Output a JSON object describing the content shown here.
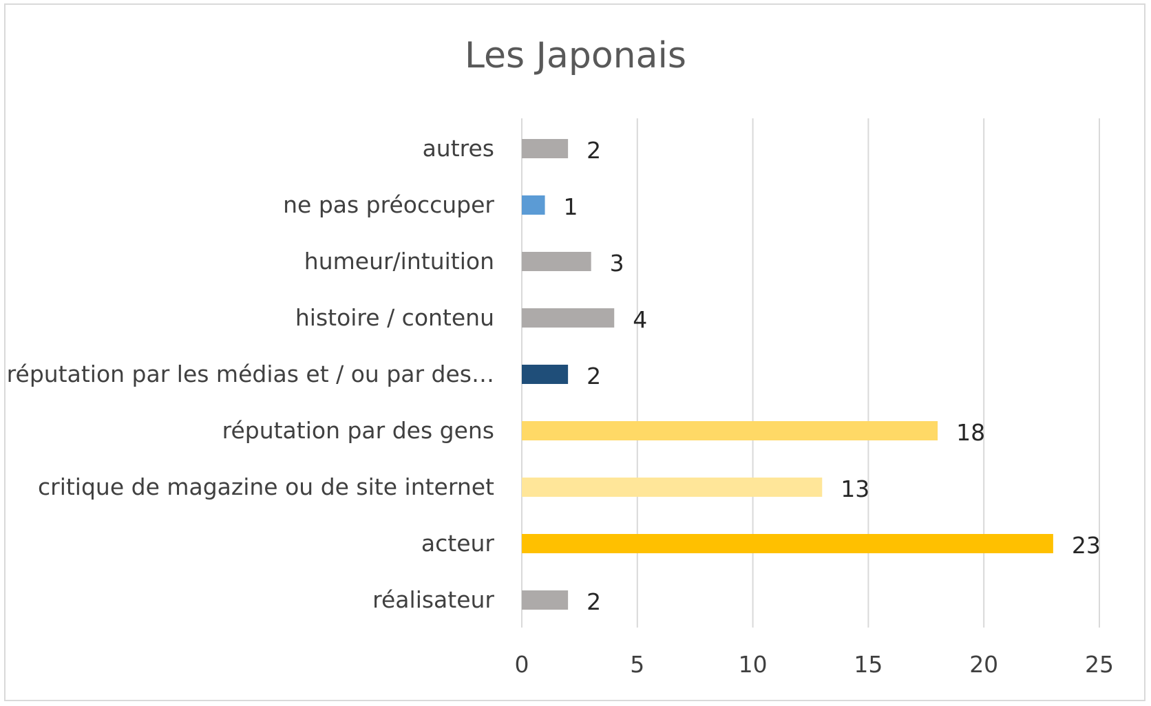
{
  "chart_data": {
    "type": "bar",
    "orientation": "horizontal",
    "title": "Les Japonais",
    "xlabel": "",
    "ylabel": "",
    "xlim": [
      0,
      25
    ],
    "x_ticks": [
      0,
      5,
      10,
      15,
      20,
      25
    ],
    "grid": true,
    "legend": "none",
    "categories": [
      "réalisateur",
      "acteur",
      "critique de magazine ou de site internet",
      "réputation par des gens",
      "réputation par les médias et / ou par des…",
      "histoire / contenu",
      "humeur/intuition",
      "ne pas préoccuper",
      "autres"
    ],
    "values": [
      2,
      23,
      13,
      18,
      2,
      4,
      3,
      1,
      2
    ],
    "bar_colors": [
      "#adaaa9",
      "#ffc000",
      "#ffe699",
      "#ffd966",
      "#1f4e79",
      "#adaaa9",
      "#adaaa9",
      "#5b9bd5",
      "#adaaa9"
    ]
  }
}
